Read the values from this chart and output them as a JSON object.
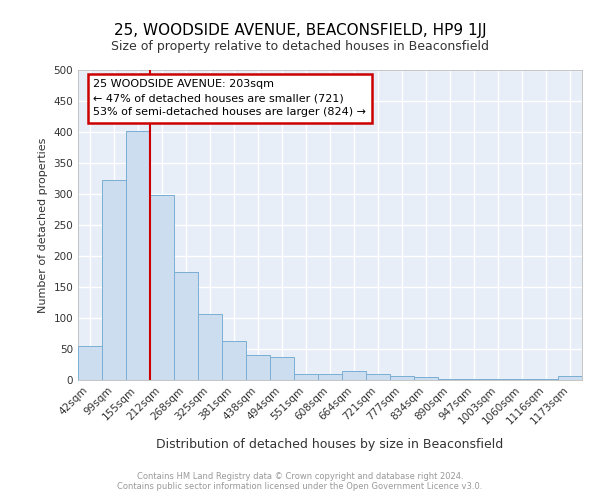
{
  "title1": "25, WOODSIDE AVENUE, BEACONSFIELD, HP9 1JJ",
  "title2": "Size of property relative to detached houses in Beaconsfield",
  "xlabel": "Distribution of detached houses by size in Beaconsfield",
  "ylabel": "Number of detached properties",
  "categories": [
    "42sqm",
    "99sqm",
    "155sqm",
    "212sqm",
    "268sqm",
    "325sqm",
    "381sqm",
    "438sqm",
    "494sqm",
    "551sqm",
    "608sqm",
    "664sqm",
    "721sqm",
    "777sqm",
    "834sqm",
    "890sqm",
    "947sqm",
    "1003sqm",
    "1060sqm",
    "1116sqm",
    "1173sqm"
  ],
  "values": [
    55,
    322,
    402,
    298,
    175,
    107,
    63,
    40,
    37,
    10,
    10,
    15,
    10,
    7,
    5,
    2,
    2,
    2,
    2,
    2,
    7
  ],
  "bar_color": "#ccddf0",
  "bar_edge_color": "#7aaed4",
  "vline_x": 3,
  "vline_color": "#cc0000",
  "annotation_title": "25 WOODSIDE AVENUE: 203sqm",
  "annotation_line1": "← 47% of detached houses are smaller (721)",
  "annotation_line2": "53% of semi-detached houses are larger (824) →",
  "ann_box_edge_color": "#cc0000",
  "ylim_max": 500,
  "yticks": [
    0,
    50,
    100,
    150,
    200,
    250,
    300,
    350,
    400,
    450,
    500
  ],
  "footer1": "Contains HM Land Registry data © Crown copyright and database right 2024.",
  "footer2": "Contains public sector information licensed under the Open Government Licence v3.0.",
  "plot_bg_color": "#e8eef8",
  "fig_bg_color": "#ffffff",
  "title1_fontsize": 11,
  "title2_fontsize": 9,
  "xlabel_fontsize": 9,
  "ylabel_fontsize": 8,
  "tick_fontsize": 7.5,
  "footer_fontsize": 6,
  "ann_fontsize": 8
}
